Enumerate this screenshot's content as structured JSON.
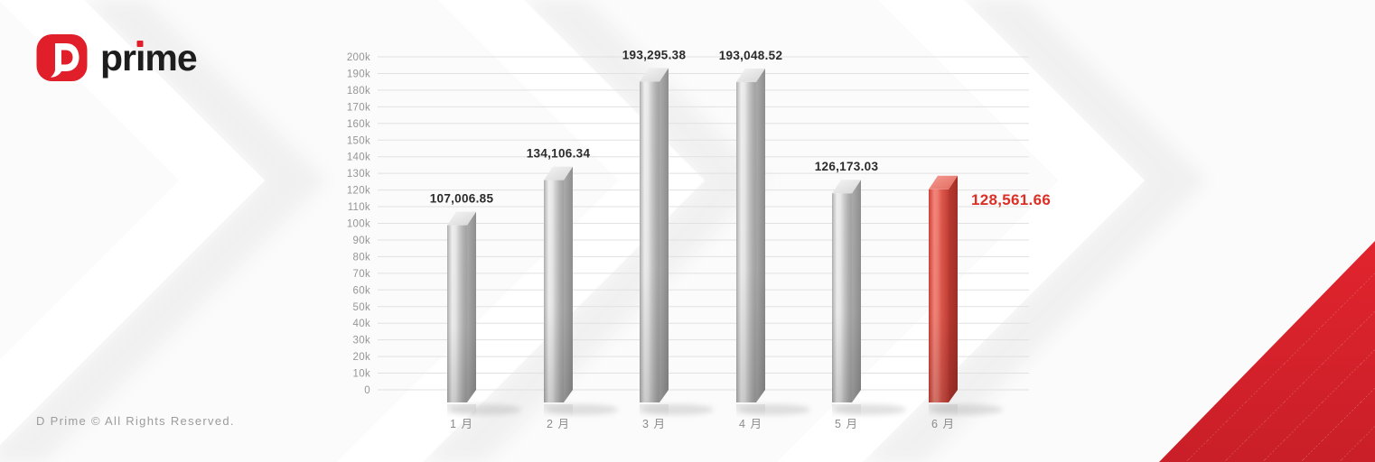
{
  "brand": {
    "mark_letter": "D",
    "logo_text": "prime"
  },
  "footer": {
    "copyright": "D Prime © All Rights Reserved."
  },
  "colors": {
    "brand_red": "#e01f2b",
    "highlight_label": "#dc2f26",
    "bar_red": "#e2574b",
    "bar_gray": "#c7c7c7",
    "triangle_red": "#d8222b",
    "data_label": "#2b2b2b",
    "axis_text": "#969696",
    "month_text": "#8c8c8c",
    "gridline": "#e1e1e1"
  },
  "chart_data": {
    "type": "bar",
    "title": "",
    "xlabel": "",
    "ylabel": "",
    "categories": [
      "1 月",
      "2 月",
      "3 月",
      "4 月",
      "5 月",
      "6 月"
    ],
    "values": [
      107006.85,
      134106.34,
      193295.38,
      193048.52,
      126173.03,
      128561.66
    ],
    "value_labels": [
      "107,006.85",
      "134,106.34",
      "193,295.38",
      "193,048.52",
      "126,173.03",
      "128,561.66"
    ],
    "highlight_index": 5,
    "ylim": [
      0,
      200000
    ],
    "ytick_step": 10000,
    "ytick_labels": [
      "0",
      "10k",
      "20k",
      "30k",
      "40k",
      "50k",
      "60k",
      "70k",
      "80k",
      "90k",
      "100k",
      "110k",
      "120k",
      "130k",
      "140k",
      "150k",
      "160k",
      "170k",
      "180k",
      "190k",
      "200k"
    ],
    "grid": true,
    "legend": "none"
  }
}
